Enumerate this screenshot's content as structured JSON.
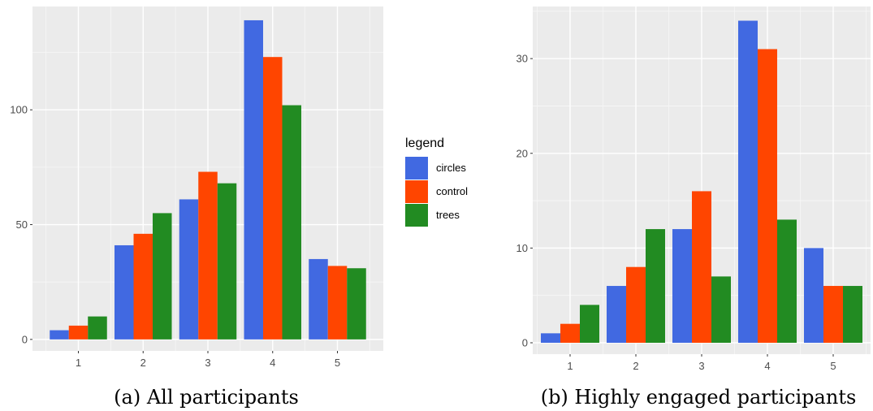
{
  "legend": {
    "title": "legend",
    "items": [
      {
        "label": "circles",
        "color": "#4169E1"
      },
      {
        "label": "control",
        "color": "#FF4500"
      },
      {
        "label": "trees",
        "color": "#228B22"
      }
    ]
  },
  "chart_data": [
    {
      "type": "bar",
      "caption": "(a) All participants",
      "categories": [
        "1",
        "2",
        "3",
        "4",
        "5"
      ],
      "series": [
        {
          "name": "circles",
          "values": [
            4,
            41,
            61,
            139,
            35
          ]
        },
        {
          "name": "control",
          "values": [
            6,
            46,
            73,
            123,
            32
          ]
        },
        {
          "name": "trees",
          "values": [
            10,
            55,
            68,
            102,
            31
          ]
        }
      ],
      "yticks": [
        0,
        50,
        100
      ],
      "ylim": [
        -5,
        145
      ],
      "grid": true
    },
    {
      "type": "bar",
      "caption": "(b) Highly engaged participants",
      "categories": [
        "1",
        "2",
        "3",
        "4",
        "5"
      ],
      "series": [
        {
          "name": "circles",
          "values": [
            1,
            6,
            12,
            34,
            10
          ]
        },
        {
          "name": "control",
          "values": [
            2,
            8,
            16,
            31,
            6
          ]
        },
        {
          "name": "trees",
          "values": [
            4,
            12,
            7,
            13,
            6
          ]
        }
      ],
      "yticks": [
        0,
        10,
        20,
        30
      ],
      "ylim": [
        -1.2,
        35.5
      ],
      "grid": true
    }
  ]
}
